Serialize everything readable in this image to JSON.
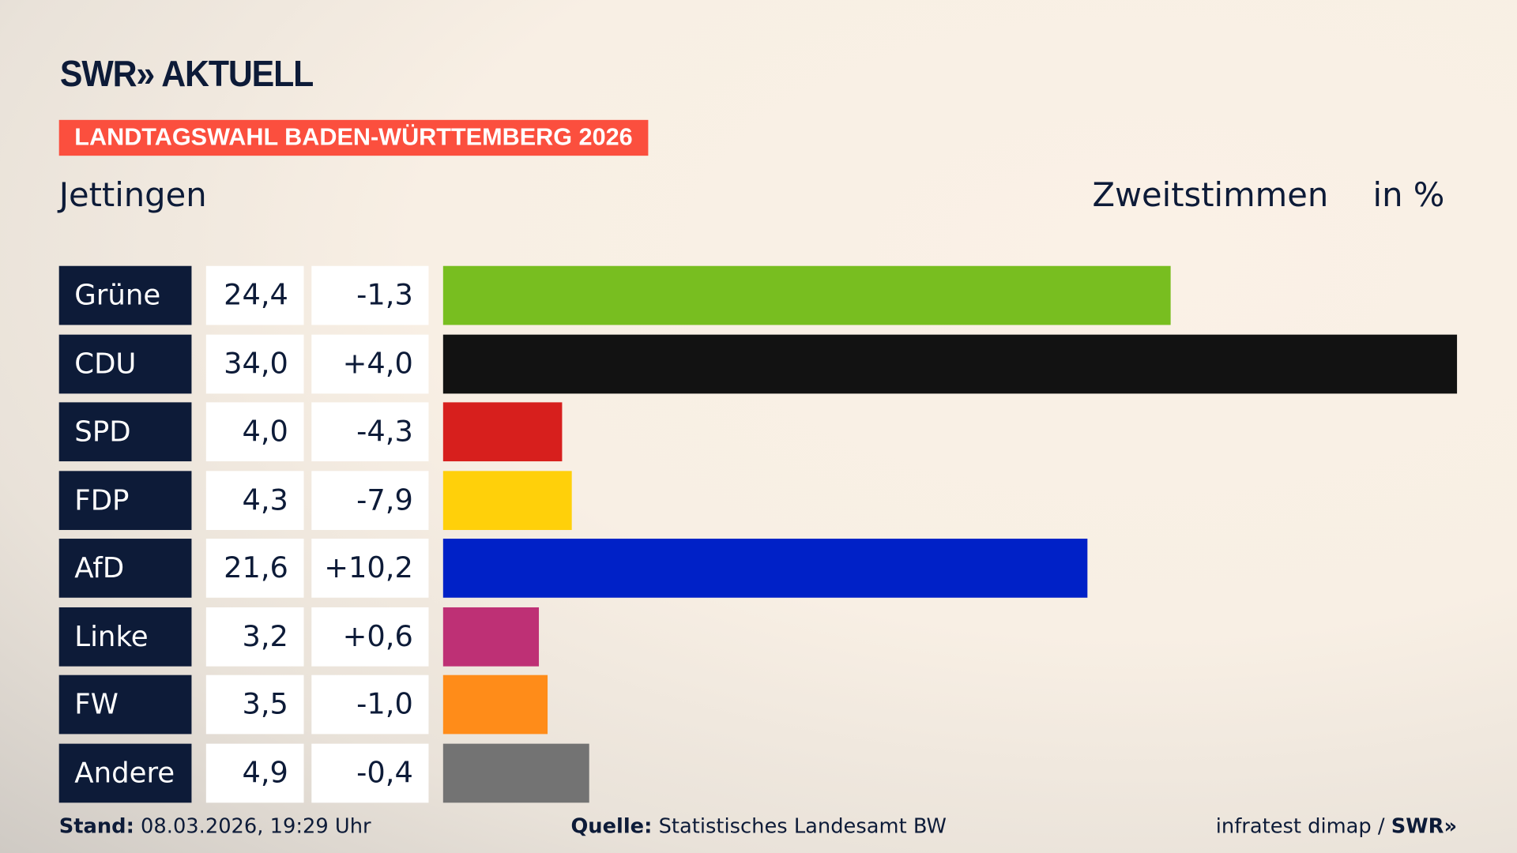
{
  "logo": "SWR» AKTUELL",
  "banner": "LANDTAGSWAHL BADEN-WÜRTTEMBERG 2026",
  "location": "Jettingen",
  "header_votes": "Zweitstimmen",
  "header_unit": "in %",
  "chart_data": {
    "type": "bar",
    "orientation": "horizontal",
    "categories": [
      "Grüne",
      "CDU",
      "SPD",
      "FDP",
      "AfD",
      "Linke",
      "FW",
      "Andere"
    ],
    "values": [
      24.4,
      34.0,
      4.0,
      4.3,
      21.6,
      3.2,
      3.5,
      4.9
    ],
    "value_labels": [
      "24,4",
      "34,0",
      "4,0",
      "4,3",
      "21,6",
      "3,2",
      "3,5",
      "4,9"
    ],
    "changes": [
      "-1,3",
      "+4,0",
      "-4,3",
      "-7,9",
      "+10,2",
      "+0,6",
      "-1,0",
      "-0,4"
    ],
    "colors": [
      "#78be20",
      "#121212",
      "#d71f1d",
      "#ffd00a",
      "#0021c7",
      "#be3075",
      "#ff8c19",
      "#737373"
    ]
  },
  "footer": {
    "stand_label": "Stand:",
    "stand_value": "08.03.2026, 19:29 Uhr",
    "source_label": "Quelle:",
    "source_value": "Statistisches Landesamt BW",
    "credit": "infratest dimap / ",
    "credit_logo": "SWR»"
  }
}
